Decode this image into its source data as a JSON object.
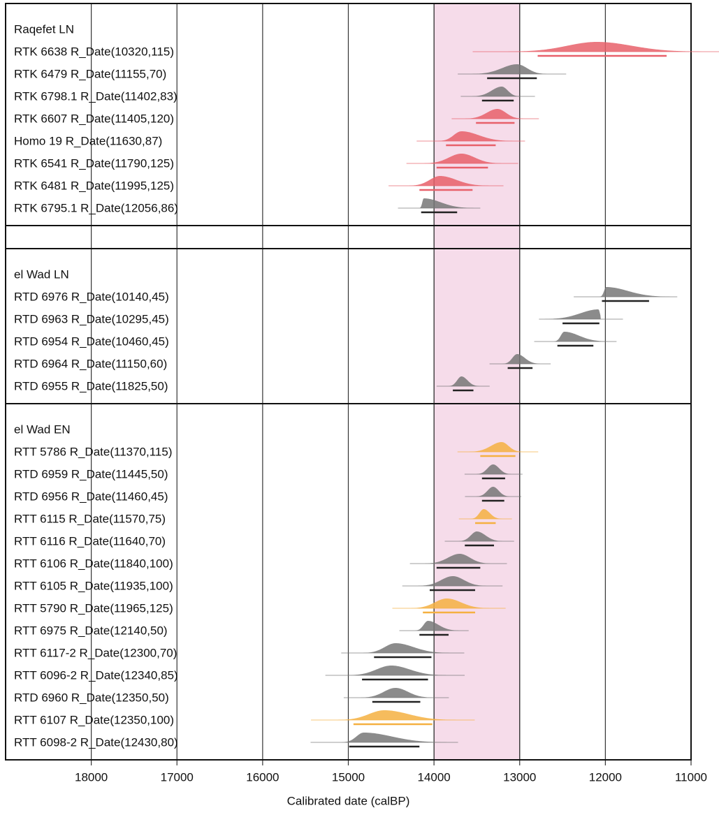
{
  "chart_data": {
    "type": "multiplot",
    "xlabel": "Calibrated date (calBP)",
    "xlim": [
      19000,
      11000
    ],
    "xticks": [
      18000,
      17000,
      16000,
      15000,
      14000,
      13000,
      12000,
      11000
    ],
    "highlight": [
      14000,
      13000
    ],
    "groups": [
      {
        "name": "Raqefet LN",
        "items": [
          {
            "label": "RTK 6638 R_Date(10320,115)",
            "color": "#e8606a",
            "peak": 12100,
            "range": [
              12790,
              11285
            ]
          },
          {
            "label": "RTK 6479 R_Date(11155,70)",
            "color": "#777777",
            "peak": 13030,
            "range": [
              13380,
              12800
            ]
          },
          {
            "label": "RTK 6798.1 R_Date(11402,83)",
            "color": "#777777",
            "peak": 13210,
            "range": [
              13440,
              13070
            ]
          },
          {
            "label": "RTK 6607 R_Date(11405,120)",
            "color": "#e8606a",
            "peak": 13260,
            "range": [
              13510,
              13060
            ]
          },
          {
            "label": "Homo 19 R_Date(11630,87)",
            "color": "#e8606a",
            "peak": 13680,
            "range": [
              13860,
              13280
            ]
          },
          {
            "label": "RTK 6541 R_Date(11790,125)",
            "color": "#e8606a",
            "peak": 13680,
            "range": [
              13970,
              13370
            ]
          },
          {
            "label": "RTK 6481 R_Date(11995,125)",
            "color": "#e8606a",
            "peak": 13930,
            "range": [
              14170,
              13550
            ]
          },
          {
            "label": "RTK 6795.1 R_Date(12056,86)",
            "color": "#777777",
            "peak": 14120,
            "range": [
              14150,
              13730
            ]
          }
        ]
      },
      {
        "name": null,
        "items": []
      },
      {
        "name": "el Wad LN",
        "items": [
          {
            "label": "RTD 6976 R_Date(10140,45)",
            "color": "#777777",
            "peak": 11990,
            "range": [
              12040,
              11490
            ]
          },
          {
            "label": "RTD 6963 R_Date(10295,45)",
            "color": "#777777",
            "peak": 12080,
            "range": [
              12500,
              12070
            ]
          },
          {
            "label": "RTD 6954 R_Date(10460,45)",
            "color": "#777777",
            "peak": 12480,
            "range": [
              12560,
              12140
            ]
          },
          {
            "label": "RTD 6964 R_Date(11150,60)",
            "color": "#777777",
            "peak": 13030,
            "range": [
              13140,
              12850
            ]
          },
          {
            "label": "RTD 6955 R_Date(11825,50)",
            "color": "#777777",
            "peak": 13680,
            "range": [
              13780,
              13540
            ]
          }
        ]
      },
      {
        "name": "el Wad EN",
        "items": [
          {
            "label": "RTT 5786 R_Date(11370,115)",
            "color": "#f5b041",
            "peak": 13210,
            "range": [
              13460,
              13050
            ]
          },
          {
            "label": "RTD 6959 R_Date(11445,50)",
            "color": "#777777",
            "peak": 13310,
            "range": [
              13440,
              13170
            ]
          },
          {
            "label": "RTD 6956 R_Date(11460,45)",
            "color": "#777777",
            "peak": 13310,
            "range": [
              13440,
              13180
            ]
          },
          {
            "label": "RTT 6115 R_Date(11570,75)",
            "color": "#f5b041",
            "peak": 13420,
            "range": [
              13520,
              13280
            ]
          },
          {
            "label": "RTT 6116 R_Date(11640,70)",
            "color": "#777777",
            "peak": 13500,
            "range": [
              13640,
              13300
            ]
          },
          {
            "label": "RTT 6106 R_Date(11840,100)",
            "color": "#777777",
            "peak": 13700,
            "range": [
              13970,
              13460
            ]
          },
          {
            "label": "RTT 6105 R_Date(11935,100)",
            "color": "#777777",
            "peak": 13780,
            "range": [
              14050,
              13520
            ]
          },
          {
            "label": "RTT 5790 R_Date(11965,125)",
            "color": "#f5b041",
            "peak": 13850,
            "range": [
              14130,
              13520
            ]
          },
          {
            "label": "RTT 6975 R_Date(12140,50)",
            "color": "#777777",
            "peak": 14070,
            "range": [
              14170,
              13830
            ]
          },
          {
            "label": "RTT 6117-2 R_Date(12300,70)",
            "color": "#777777",
            "peak": 14450,
            "range": [
              14700,
              14030
            ]
          },
          {
            "label": "RTT 6096-2 R_Date(12340,85)",
            "color": "#777777",
            "peak": 14500,
            "range": [
              14840,
              14070
            ]
          },
          {
            "label": "RTD 6960 R_Date(12350,50)",
            "color": "#777777",
            "peak": 14450,
            "range": [
              14720,
              14160
            ]
          },
          {
            "label": "RTT 6107 R_Date(12350,100)",
            "color": "#f5b041",
            "peak": 14580,
            "range": [
              14940,
              14020
            ]
          },
          {
            "label": "RTT 6098-2 R_Date(12430,80)",
            "color": "#777777",
            "peak": 14820,
            "range": [
              14990,
              14170
            ]
          }
        ]
      }
    ]
  }
}
